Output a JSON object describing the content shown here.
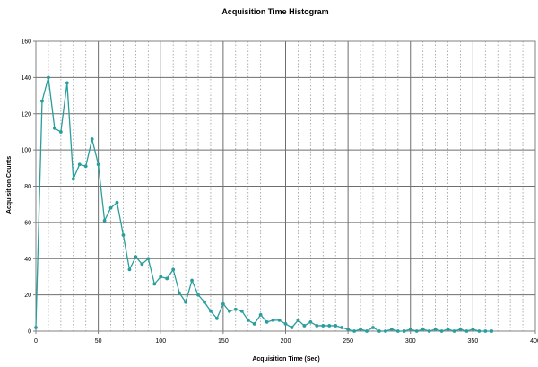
{
  "chart_data": {
    "type": "line",
    "title": "Acquisition Time Histogram",
    "xlabel": "Acquisition Time (Sec)",
    "ylabel": "Acquisition Counts",
    "xlim": [
      0,
      400
    ],
    "ylim": [
      0,
      160
    ],
    "x_ticks": [
      0,
      50,
      100,
      150,
      200,
      250,
      300,
      350,
      400
    ],
    "y_ticks": [
      0,
      20,
      40,
      60,
      80,
      100,
      120,
      140,
      160
    ],
    "grid": true,
    "legend": "none",
    "series_color": "#2a9d9d",
    "series": [
      {
        "x": [
          0,
          5,
          10,
          15,
          20,
          25,
          30,
          35,
          40,
          45,
          50,
          55,
          60,
          65,
          70,
          75,
          80,
          85,
          90,
          95,
          100,
          105,
          110,
          115,
          120,
          125,
          130,
          135,
          140,
          145,
          150,
          155,
          160,
          165,
          170,
          175,
          180,
          185,
          190,
          195,
          200,
          205,
          210,
          215,
          220,
          225,
          230,
          235,
          240,
          245,
          250,
          255,
          260,
          265,
          270,
          275,
          280,
          285,
          290,
          295,
          300,
          305,
          310,
          315,
          320,
          325,
          330,
          335,
          340,
          345,
          350,
          355,
          360,
          365
        ],
        "y": [
          2,
          127,
          140,
          112,
          110,
          137,
          84,
          92,
          91,
          106,
          92,
          61,
          68,
          71,
          53,
          34,
          41,
          37,
          40,
          26,
          30,
          29,
          34,
          21,
          16,
          28,
          20,
          16,
          11,
          7,
          15,
          11,
          12,
          11,
          6,
          4,
          9,
          5,
          6,
          6,
          4,
          2,
          6,
          3,
          5,
          3,
          3,
          3,
          3,
          2,
          1,
          0,
          1,
          0,
          2,
          0,
          0,
          1,
          0,
          0,
          1,
          0,
          1,
          0,
          1,
          0,
          1,
          0,
          1,
          0,
          1,
          0,
          0,
          0
        ]
      }
    ]
  }
}
